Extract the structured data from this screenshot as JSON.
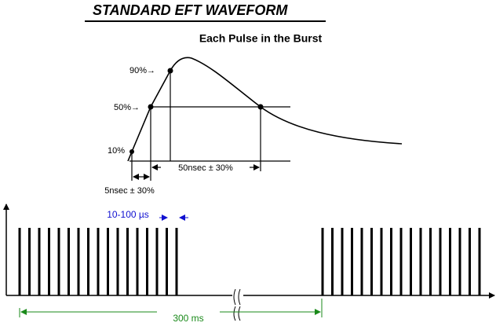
{
  "header": {
    "title": "STANDARD EFT WAVEFORM"
  },
  "pulse": {
    "title": "Each Pulse in the Burst",
    "level_90": "90%→",
    "level_50": "50%→",
    "level_10": "10%",
    "width_label": "50nsec ± 30%",
    "rise_label": "5nsec ± 30%"
  },
  "burst": {
    "spacing_label": "10-100 µs",
    "period_label": "300 ms"
  }
}
